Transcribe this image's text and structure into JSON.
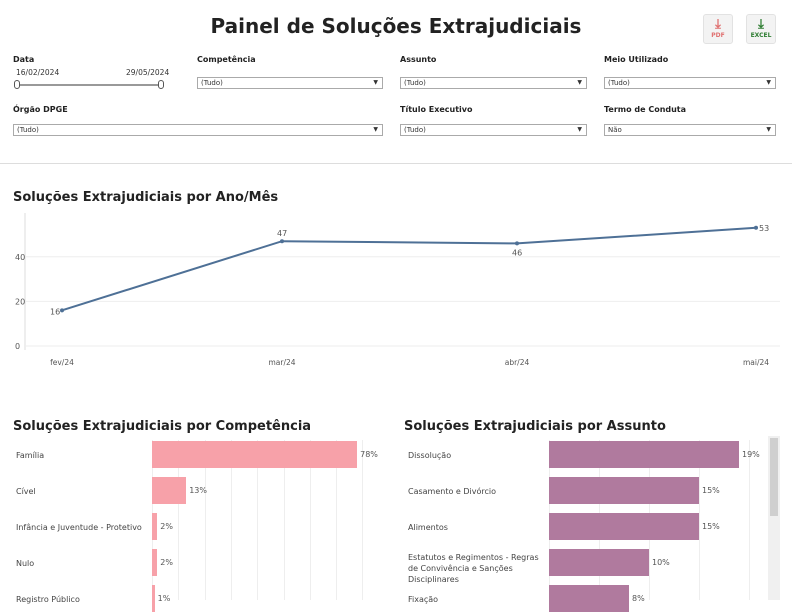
{
  "header": {
    "title": "Painel de Soluções Extrajudiciais",
    "pdf_label": "PDF",
    "excel_label": "EXCEL"
  },
  "filters": {
    "data": {
      "label": "Data",
      "start": "16/02/2024",
      "end": "29/05/2024"
    },
    "competencia": {
      "label": "Competência",
      "value": "(Tudo)"
    },
    "assunto": {
      "label": "Assunto",
      "value": "(Tudo)"
    },
    "meio": {
      "label": "Meio Utilizado",
      "value": "(Tudo)"
    },
    "orgao": {
      "label": "Órgão DPGE",
      "value": "(Tudo)"
    },
    "titulo": {
      "label": "Título Executivo",
      "value": "(Tudo)"
    },
    "termo": {
      "label": "Termo de Conduta",
      "value": "Não"
    }
  },
  "chart_data": [
    {
      "type": "line",
      "title": "Soluções Extrajudiciais por Ano/Mês",
      "categories": [
        "fev/24",
        "mar/24",
        "abr/24",
        "mai/24"
      ],
      "values": [
        16,
        47,
        46,
        53
      ],
      "yticks": [
        "0",
        "20",
        "40"
      ],
      "ylim": [
        0,
        60
      ],
      "color": "#4e7096"
    },
    {
      "type": "bar",
      "title": "Soluções Extrajudiciais por Competência",
      "categories": [
        "Família",
        "Cível",
        "Infância e Juventude - Protetivo",
        "Nulo",
        "Registro Público"
      ],
      "values": [
        78,
        13,
        2,
        2,
        1
      ],
      "labels": [
        "78%",
        "13%",
        "2%",
        "2%",
        "1%"
      ],
      "color": "#f7a1a9"
    },
    {
      "type": "bar",
      "title": "Soluções Extrajudiciais por Assunto",
      "categories": [
        "Dissolução",
        "Casamento e Divórcio",
        "Alimentos",
        "Estatutos e Regimentos - Regras de Convivência e Sanções Disciplinares",
        "Fixação"
      ],
      "values": [
        19,
        15,
        15,
        10,
        8
      ],
      "labels": [
        "19%",
        "15%",
        "15%",
        "10%",
        "8%"
      ],
      "color": "#b07a9e"
    }
  ]
}
